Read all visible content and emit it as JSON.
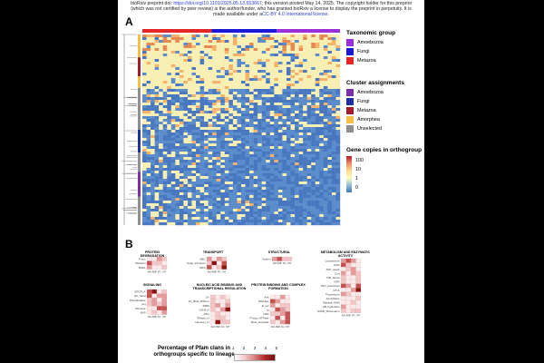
{
  "header": {
    "line1_pre": "bioRxiv preprint doi: ",
    "line1_link": "https://doi.org/10.1101/2025.05.13.653667",
    "line1_post": "; this version posted May 14, 2025. The copyright holder for this preprint",
    "line2": "(which was not certified by peer review) is the author/funder, who has granted bioRxiv a license to display the preprint in perpetuity. It is",
    "line3_pre": "made available under a",
    "line3_link": "CC-BY 4.0 International license",
    "line3_post": "."
  },
  "panel_a": {
    "letter": "A",
    "legends": {
      "taxonomic": {
        "title": "Taxonomic group",
        "items": [
          {
            "label": "Amoebozoa",
            "color": "#9b30d9"
          },
          {
            "label": "Fungi",
            "color": "#1a1ad6"
          },
          {
            "label": "Metazoa",
            "color": "#e32626"
          }
        ]
      },
      "cluster": {
        "title": "Cluster assignments",
        "items": [
          {
            "label": "Amoebozoa",
            "color": "#7b2fa8"
          },
          {
            "label": "Fungi",
            "color": "#1f2f9e"
          },
          {
            "label": "Metazoa",
            "color": "#a51c2a"
          },
          {
            "label": "Amorphea",
            "color": "#f5c043"
          },
          {
            "label": "Unselected",
            "color": "#8f8f8f"
          }
        ]
      },
      "gene_copies": {
        "title": "Gene copies in orthogroup",
        "ticks": [
          "100",
          "10",
          "1",
          "0"
        ]
      }
    }
  },
  "panel_b": {
    "letter": "B",
    "x_ticks": [
      "AM",
      "AMF",
      "FG",
      "MT"
    ],
    "groups": [
      {
        "id": "protein-degradation",
        "title": "PROTEIN DEGRADATION",
        "rows": [
          "F-box",
          "Ubiquitin",
          "RING"
        ]
      },
      {
        "id": "transport",
        "title": "TRANSPORT",
        "rows": [
          "ABC",
          "Golgi_transport",
          "MFS"
        ]
      },
      {
        "id": "structural",
        "title": "STRUCTURAL",
        "rows": [
          "Actinin"
        ]
      },
      {
        "id": "metabolism",
        "title": "METABOLISM AND ENZYMATIC ACTIVITY",
        "rows": [
          "Cytochrome",
          "HAD",
          "AFP_ureas",
          "Cori",
          "TIM_barrel",
          "NTR",
          "PLP_aminotran",
          "GT-A",
          "Thioredoxin",
          "Acetyltrans",
          "Radical_SAM",
          "AB_hydrolase",
          "NADP_Rossmann"
        ]
      },
      {
        "id": "signaling",
        "title": "SIGNALING",
        "rows": [
          "GPCR_A",
          "EF_hand",
          "Phosphatase",
          "PH",
          "PKinase",
          "SH3"
        ]
      },
      {
        "id": "nucleic",
        "title": "NUCLEIC ACID BINDING AND TRANSCRIPTIONAL REGULATION",
        "rows": [
          "Zn",
          "Zn_Beta_Ribbon",
          "RRM",
          "C2H2-zf",
          "bZip",
          "RNase_H",
          "Homoeo_H"
        ]
      },
      {
        "id": "protein-binding",
        "title": "PROTEIN BINDING AND COMPLEX FORMATION",
        "rows": [
          "Ank",
          "PDZ-like",
          "E_set",
          "Ig",
          "LRR",
          "P-loop_NTPase",
          "Beta_propeller"
        ]
      }
    ],
    "percent_legend": {
      "title": "Percentage of Pfam clans in orthogroups specific to lineage",
      "ticks": [
        "1",
        "2",
        "3",
        "4",
        "5"
      ]
    }
  }
}
